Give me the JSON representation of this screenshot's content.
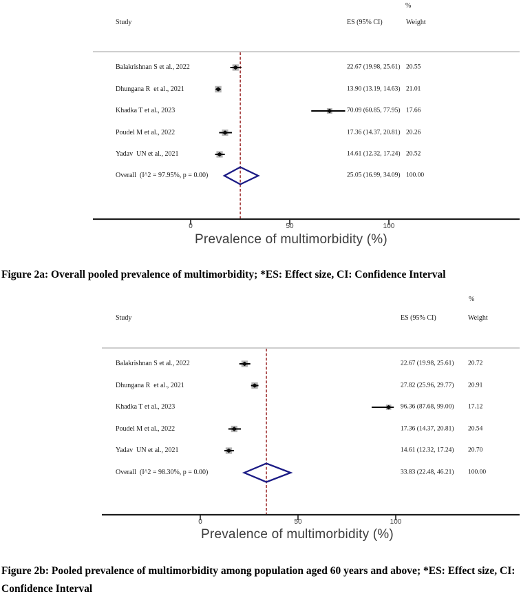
{
  "columns": {
    "study": "Study",
    "es_ci": "ES (95% CI)",
    "weight": "Weight",
    "percent": "%"
  },
  "colors": {
    "pooled_diamond": "#1b1b85",
    "null_line": "#a23737",
    "weight_square": "#b5b5b5",
    "point_marker": "#0a0a0a",
    "ci_line": "#000000",
    "axis_line": "#1c1c1c",
    "separator_line": "#9e9e9e"
  },
  "chart_data": [
    {
      "type": "forest",
      "title": "",
      "xlabel": "Prevalence of multimorbidity (%)",
      "xticks": [
        0,
        50,
        100
      ],
      "xlim": [
        -49,
        166
      ],
      "grid": false,
      "null_line_at": 25.05,
      "studies": [
        {
          "label": "Balakrishnan S et al., 2022",
          "es": 22.67,
          "ci": [
            19.98,
            25.61
          ],
          "es_text": "22.67 (19.98, 25.61)",
          "weight": 20.55,
          "weight_text": "20.55"
        },
        {
          "label": "Dhungana R  et al., 2021",
          "es": 13.9,
          "ci": [
            13.19,
            14.63
          ],
          "es_text": "13.90 (13.19, 14.63)",
          "weight": 21.01,
          "weight_text": "21.01"
        },
        {
          "label": "Khadka T et al., 2023",
          "es": 70.09,
          "ci": [
            60.85,
            77.95
          ],
          "es_text": "70.09 (60.85, 77.95)",
          "weight": 17.66,
          "weight_text": "17.66"
        },
        {
          "label": "Poudel M et al., 2022",
          "es": 17.36,
          "ci": [
            14.37,
            20.81
          ],
          "es_text": "17.36 (14.37, 20.81)",
          "weight": 20.26,
          "weight_text": "20.26"
        },
        {
          "label": "Yadav  UN et al., 2021",
          "es": 14.61,
          "ci": [
            12.32,
            17.24
          ],
          "es_text": "14.61 (12.32, 17.24)",
          "weight": 20.52,
          "weight_text": "20.52"
        }
      ],
      "overall": {
        "label": "Overall  (I^2 = 97.95%, p = 0.00)",
        "es": 25.05,
        "ci": [
          16.99,
          34.09
        ],
        "es_text": "25.05 (16.99, 34.09)",
        "weight": 100,
        "weight_text": "100.00"
      },
      "caption": "Figure 2a: Overall pooled prevalence of multimorbidity; *ES: Effect size, CI: Confidence Interval"
    },
    {
      "type": "forest",
      "title": "",
      "xlabel": "Prevalence of multimorbidity (%)",
      "xticks": [
        0,
        50,
        100
      ],
      "xlim": [
        -50,
        163
      ],
      "grid": false,
      "null_line_at": 33.83,
      "studies": [
        {
          "label": "Balakrishnan S et al., 2022",
          "es": 22.67,
          "ci": [
            19.98,
            25.61
          ],
          "es_text": "22.67 (19.98, 25.61)",
          "weight": 20.72,
          "weight_text": "20.72"
        },
        {
          "label": "Dhungana R  et al., 2021",
          "es": 27.82,
          "ci": [
            25.96,
            29.77
          ],
          "es_text": "27.82 (25.96, 29.77)",
          "weight": 20.91,
          "weight_text": "20.91"
        },
        {
          "label": "Khadka T et al., 2023",
          "es": 96.36,
          "ci": [
            87.68,
            99.0
          ],
          "es_text": "96.36 (87.68, 99.00)",
          "weight": 17.12,
          "weight_text": "17.12"
        },
        {
          "label": "Poudel M et al., 2022",
          "es": 17.36,
          "ci": [
            14.37,
            20.81
          ],
          "es_text": "17.36 (14.37, 20.81)",
          "weight": 20.54,
          "weight_text": "20.54"
        },
        {
          "label": "Yadav  UN et al., 2021",
          "es": 14.61,
          "ci": [
            12.32,
            17.24
          ],
          "es_text": "14.61 (12.32, 17.24)",
          "weight": 20.7,
          "weight_text": "20.70"
        }
      ],
      "overall": {
        "label": "Overall  (I^2 = 98.30%, p = 0.00)",
        "es": 33.83,
        "ci": [
          22.48,
          46.21
        ],
        "es_text": "33.83 (22.48, 46.21)",
        "weight": 100,
        "weight_text": "100.00"
      },
      "caption": "Figure 2b: Pooled prevalence of multimorbidity among population aged 60 years and above; *ES: Effect size, CI: Confidence Interval"
    }
  ]
}
